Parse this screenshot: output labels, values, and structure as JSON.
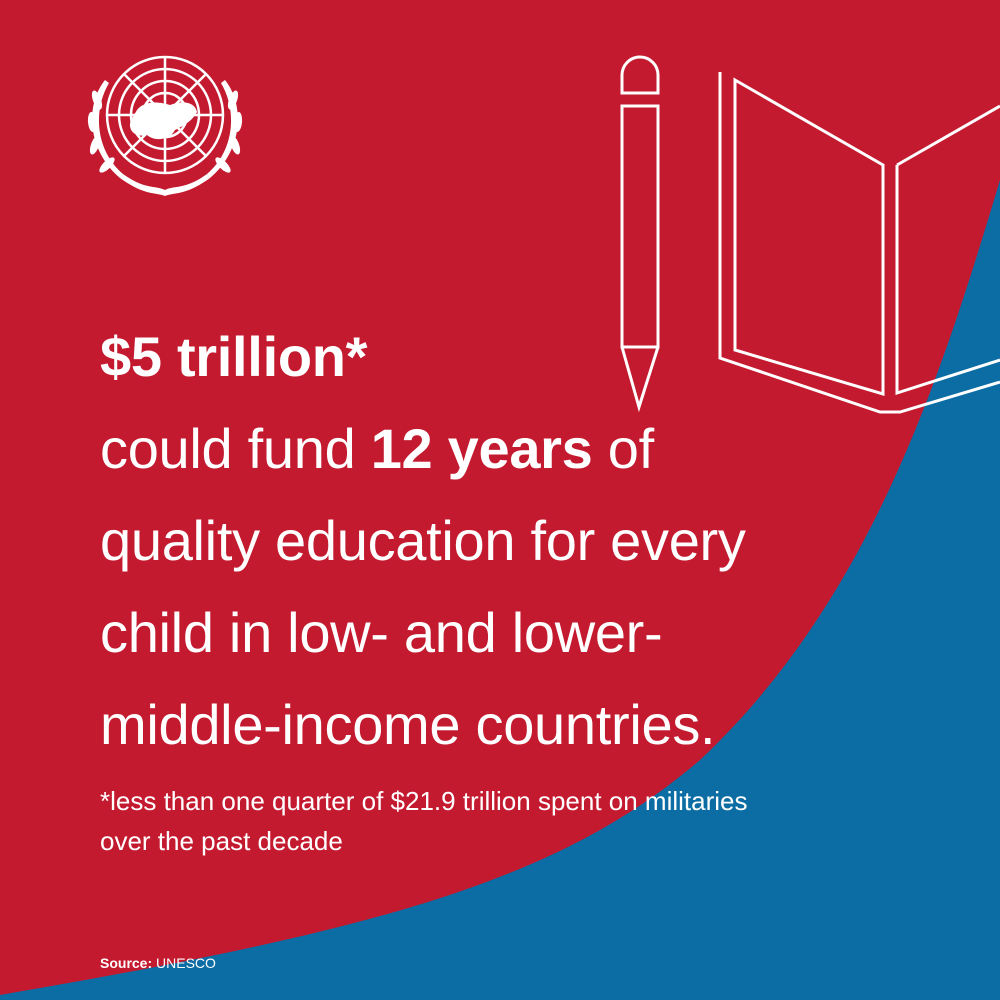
{
  "colors": {
    "background_red": "#c41a2f",
    "accent_blue": "#0b6da3",
    "foreground": "#ffffff"
  },
  "logo": {
    "name": "un-emblem-icon"
  },
  "icons": [
    "pencil-icon",
    "open-book-icon"
  ],
  "headline": {
    "amount": "$5 trillion*",
    "line2_pre": "could fund ",
    "line2_bold": "12 years",
    "line2_post": " of",
    "line3": "quality education for every",
    "line4": "child in low- and lower-",
    "line5": "middle-income countries."
  },
  "footnote": {
    "line1": "*less than one quarter of $21.9 trillion spent on militaries",
    "line2": "over the past decade"
  },
  "source": {
    "label": "Source:",
    "value": " UNESCO"
  }
}
